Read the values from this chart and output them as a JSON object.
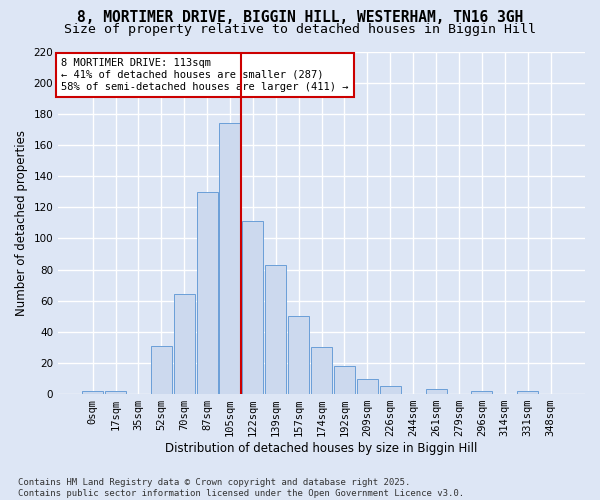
{
  "title": "8, MORTIMER DRIVE, BIGGIN HILL, WESTERHAM, TN16 3GH",
  "subtitle": "Size of property relative to detached houses in Biggin Hill",
  "xlabel": "Distribution of detached houses by size in Biggin Hill",
  "ylabel": "Number of detached properties",
  "bar_color": "#ccd9ee",
  "bar_edge_color": "#6a9fd8",
  "bar_heights": [
    2,
    2,
    0,
    31,
    64,
    130,
    174,
    111,
    83,
    50,
    30,
    18,
    10,
    5,
    0,
    3,
    0,
    2,
    0,
    2,
    0
  ],
  "categories": [
    "0sqm",
    "17sqm",
    "35sqm",
    "52sqm",
    "70sqm",
    "87sqm",
    "105sqm",
    "122sqm",
    "139sqm",
    "157sqm",
    "174sqm",
    "192sqm",
    "209sqm",
    "226sqm",
    "244sqm",
    "261sqm",
    "279sqm",
    "296sqm",
    "314sqm",
    "331sqm",
    "348sqm"
  ],
  "ylim": [
    0,
    220
  ],
  "yticks": [
    0,
    20,
    40,
    60,
    80,
    100,
    120,
    140,
    160,
    180,
    200,
    220
  ],
  "vline_x": 6.5,
  "vline_color": "#cc0000",
  "annotation_line1": "8 MORTIMER DRIVE: 113sqm",
  "annotation_line2": "← 41% of detached houses are smaller (287)",
  "annotation_line3": "58% of semi-detached houses are larger (411) →",
  "annotation_box_color": "#cc0000",
  "bg_color": "#dde6f5",
  "grid_color": "#ffffff",
  "footer_text": "Contains HM Land Registry data © Crown copyright and database right 2025.\nContains public sector information licensed under the Open Government Licence v3.0.",
  "title_fontsize": 10.5,
  "subtitle_fontsize": 9.5,
  "axis_label_fontsize": 8.5,
  "tick_fontsize": 7.5,
  "annotation_fontsize": 7.5,
  "footer_fontsize": 6.5
}
